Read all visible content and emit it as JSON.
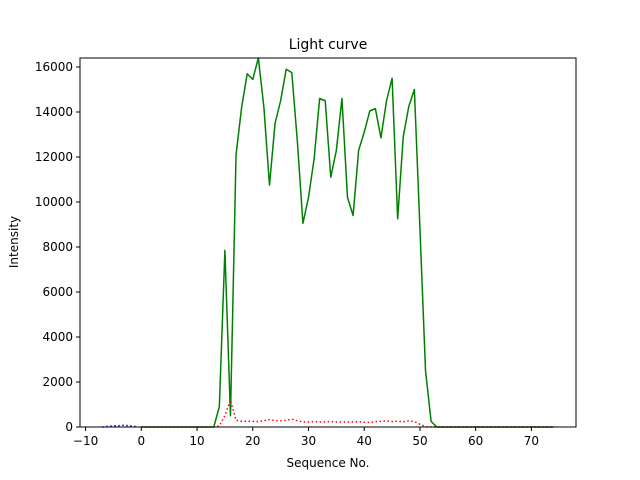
{
  "chart_data": {
    "type": "line",
    "title": "Light curve",
    "xlabel": "Sequence No.",
    "ylabel": "Intensity",
    "xlim": [
      -11,
      78
    ],
    "ylim": [
      0,
      16400
    ],
    "xticks": [
      -10,
      0,
      10,
      20,
      30,
      40,
      50,
      60,
      70
    ],
    "yticks": [
      0,
      2000,
      4000,
      6000,
      8000,
      10000,
      12000,
      14000,
      16000
    ],
    "grid": false,
    "legend": null,
    "series": [
      {
        "color": "#0000ff",
        "style": "dotted",
        "x": [
          -7,
          -6,
          -5,
          -4,
          -3,
          -2,
          -1
        ],
        "y": [
          0,
          30,
          50,
          60,
          80,
          50,
          20
        ]
      },
      {
        "color": "#008000",
        "style": "solid",
        "x": [
          0,
          1,
          2,
          3,
          4,
          5,
          6,
          7,
          8,
          9,
          10,
          11,
          12,
          13,
          14,
          15,
          16,
          17,
          18,
          19,
          20,
          21,
          22,
          23,
          24,
          25,
          26,
          27,
          28,
          29,
          30,
          31,
          32,
          33,
          34,
          35,
          36,
          37,
          38,
          39,
          40,
          41,
          42,
          43,
          44,
          45,
          46,
          47,
          48,
          49,
          50,
          51,
          52,
          53,
          54,
          55,
          56,
          57,
          58,
          59,
          60,
          61,
          62,
          63,
          64,
          65,
          66,
          67,
          68,
          69,
          70,
          71,
          72,
          73,
          74
        ],
        "y": [
          0,
          0,
          0,
          0,
          0,
          0,
          0,
          0,
          0,
          0,
          0,
          0,
          0,
          0,
          900,
          7850,
          500,
          12100,
          14200,
          15700,
          15450,
          16400,
          14200,
          10750,
          13500,
          14500,
          15900,
          15750,
          12700,
          9050,
          10200,
          11900,
          14600,
          14500,
          11100,
          12300,
          14600,
          10200,
          9400,
          12300,
          13100,
          14050,
          14150,
          12850,
          14500,
          15500,
          9250,
          12900,
          14250,
          15000,
          8800,
          2500,
          250,
          0,
          0,
          0,
          0,
          0,
          0,
          0,
          0,
          0,
          0,
          0,
          0,
          0,
          0,
          0,
          0,
          0,
          0,
          0,
          0,
          0,
          0
        ]
      },
      {
        "color": "#ff0000",
        "style": "dotted",
        "x": [
          0,
          1,
          2,
          3,
          4,
          5,
          6,
          7,
          8,
          9,
          10,
          11,
          12,
          13,
          14,
          15,
          16,
          17,
          18,
          19,
          20,
          21,
          22,
          23,
          24,
          25,
          26,
          27,
          28,
          29,
          30,
          31,
          32,
          33,
          34,
          35,
          36,
          37,
          38,
          39,
          40,
          41,
          42,
          43,
          44,
          45,
          46,
          47,
          48,
          49,
          50,
          51,
          52,
          53,
          54,
          55,
          56,
          57,
          58,
          59,
          60,
          61,
          62,
          63,
          64,
          65,
          66,
          67,
          68,
          69,
          70,
          71,
          72,
          73,
          74
        ],
        "y": [
          0,
          0,
          0,
          0,
          0,
          0,
          0,
          0,
          0,
          0,
          0,
          0,
          0,
          0,
          50,
          500,
          1200,
          300,
          250,
          260,
          250,
          240,
          280,
          330,
          280,
          270,
          300,
          350,
          280,
          230,
          220,
          240,
          220,
          230,
          240,
          220,
          230,
          220,
          220,
          240,
          210,
          200,
          240,
          250,
          270,
          240,
          260,
          230,
          280,
          240,
          120,
          20,
          0,
          0,
          0,
          0,
          0,
          0,
          0,
          0,
          0,
          0,
          0,
          0,
          0,
          0,
          0,
          0,
          0,
          0,
          0,
          0,
          0,
          0,
          0
        ]
      }
    ]
  }
}
